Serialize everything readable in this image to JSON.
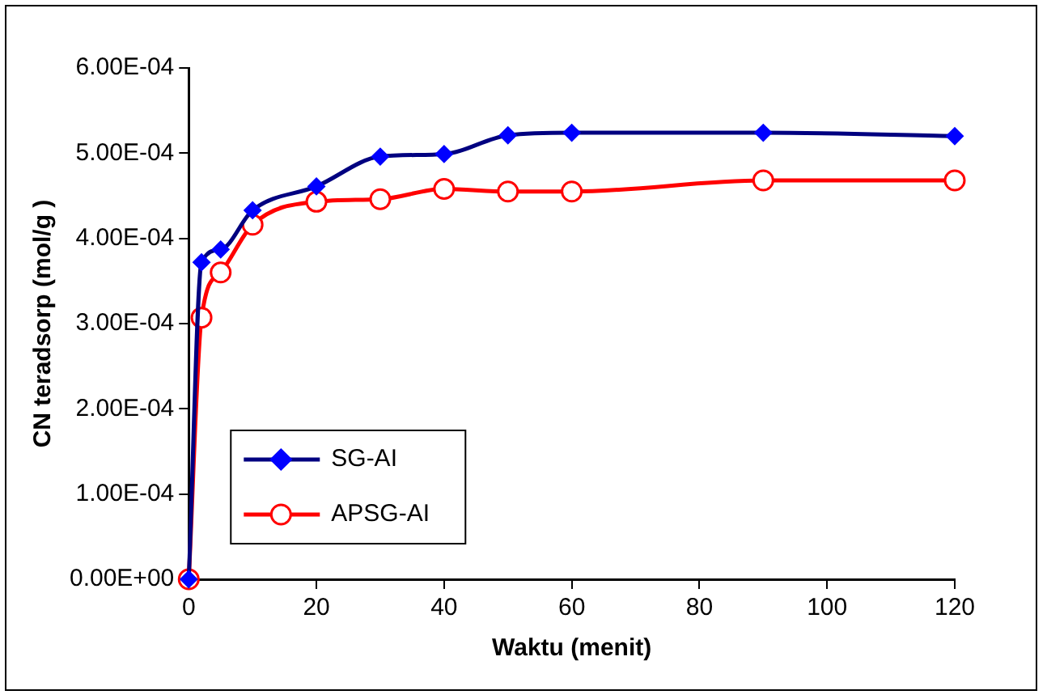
{
  "chart_data": {
    "type": "line",
    "xlabel": "Waktu (menit)",
    "ylabel": "CN teradsorp (mol/g )",
    "x": [
      0,
      2,
      5,
      10,
      20,
      30,
      40,
      50,
      60,
      90,
      120
    ],
    "xlim": [
      0,
      120
    ],
    "xticks": [
      0,
      20,
      40,
      60,
      80,
      100,
      120
    ],
    "ylim": [
      0,
      0.0006
    ],
    "yticks": [
      {
        "value": 0,
        "label": "0.00E+00"
      },
      {
        "value": 0.0001,
        "label": "1.00E-04"
      },
      {
        "value": 0.0002,
        "label": "2.00E-04"
      },
      {
        "value": 0.0003,
        "label": "3.00E-04"
      },
      {
        "value": 0.0004,
        "label": "4.00E-04"
      },
      {
        "value": 0.0005,
        "label": "5.00E-04"
      },
      {
        "value": 0.0006,
        "label": "6.00E-04"
      }
    ],
    "grid": false,
    "legend": "bottom left",
    "line_style": "solid",
    "series": [
      {
        "name": "SG-AI",
        "color": "#000080",
        "marker": "diamond",
        "values": [
          0,
          0.000372,
          0.000387,
          0.000433,
          0.000461,
          0.000496,
          0.000499,
          0.000521,
          0.000524,
          0.000524,
          0.00052
        ]
      },
      {
        "name": "APSG-AI",
        "color": "#ff0000",
        "marker": "circle",
        "values": [
          0,
          0.000307,
          0.00036,
          0.000416,
          0.000443,
          0.000446,
          0.000458,
          0.000455,
          0.000455,
          0.000468,
          0.000468
        ]
      }
    ]
  }
}
